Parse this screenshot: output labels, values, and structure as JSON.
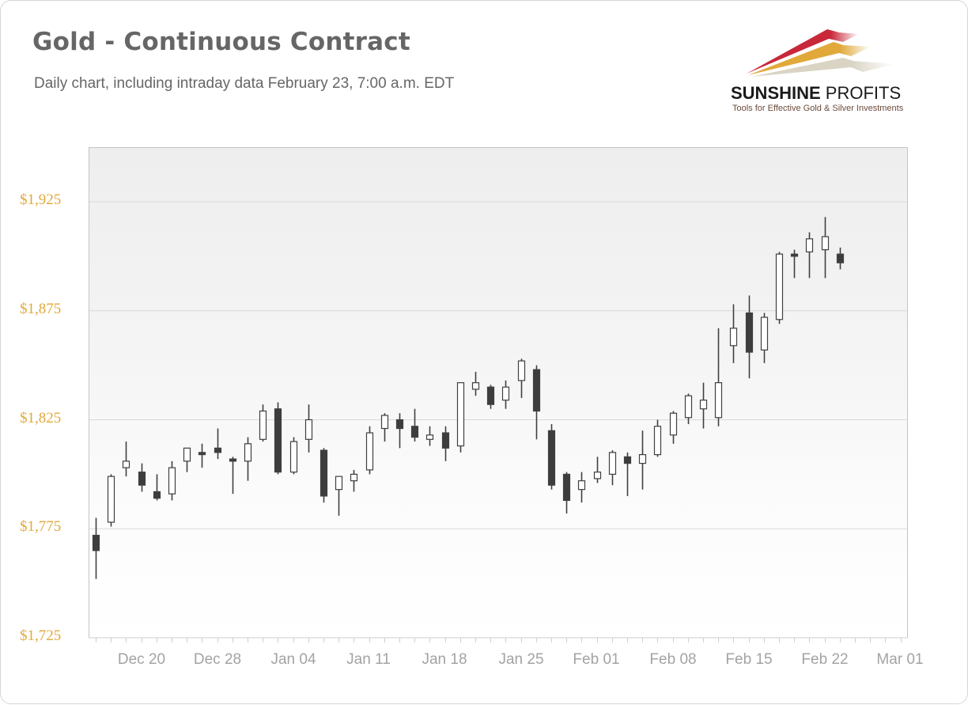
{
  "header": {
    "title": "Gold - Continuous Contract",
    "subtitle": "Daily chart, including intraday data February 23, 7:00 a.m. EDT"
  },
  "logo": {
    "name_bold": "SUNSHINE",
    "name_light": " PROFITS",
    "tagline": "Tools for Effective Gold & Silver Investments",
    "colors": [
      "#c8283a",
      "#e0a93a",
      "#d9d4c4"
    ]
  },
  "colors": {
    "up_fill": "#ffffff",
    "down_fill": "#3d3d3d",
    "outline": "#404040",
    "y_tick_label": "#e0a93a",
    "x_tick_label": "#a3a3a3",
    "grid": "#d9d9d9"
  },
  "chart_data": {
    "type": "candlestick",
    "title": "Gold - Continuous Contract",
    "subtitle": "Daily chart, including intraday data February 23, 7:00 a.m. EDT",
    "xlabel": "",
    "ylabel": "",
    "ylim": [
      1725,
      1950
    ],
    "y_ticks": [
      "$1,725",
      "$1,775",
      "$1,825",
      "$1,875",
      "$1,925"
    ],
    "y_tick_values": [
      1725,
      1775,
      1825,
      1875,
      1925
    ],
    "x_ticks": [
      "Dec 20",
      "Dec 28",
      "Jan 04",
      "Jan 11",
      "Jan 18",
      "Jan 25",
      "Feb 01",
      "Feb 08",
      "Feb 15",
      "Feb 22",
      "Mar 01"
    ],
    "grid": {
      "horizontal": true,
      "vertical": false
    },
    "legend": null,
    "candles": [
      {
        "date": "Dec 15",
        "open": 1772,
        "high": 1780,
        "low": 1752,
        "close": 1765
      },
      {
        "date": "Dec 16",
        "open": 1778,
        "high": 1800,
        "low": 1776,
        "close": 1799
      },
      {
        "date": "Dec 17",
        "open": 1803,
        "high": 1815,
        "low": 1799,
        "close": 1806
      },
      {
        "date": "Dec 20",
        "open": 1801,
        "high": 1805,
        "low": 1792,
        "close": 1795
      },
      {
        "date": "Dec 21",
        "open": 1792,
        "high": 1800,
        "low": 1788,
        "close": 1789
      },
      {
        "date": "Dec 22",
        "open": 1791,
        "high": 1806,
        "low": 1788,
        "close": 1803
      },
      {
        "date": "Dec 23",
        "open": 1806,
        "high": 1811,
        "low": 1801,
        "close": 1812
      },
      {
        "date": "Dec 27",
        "open": 1810,
        "high": 1814,
        "low": 1803,
        "close": 1809
      },
      {
        "date": "Dec 28",
        "open": 1812,
        "high": 1821,
        "low": 1807,
        "close": 1810
      },
      {
        "date": "Dec 29",
        "open": 1807,
        "high": 1808,
        "low": 1791,
        "close": 1806
      },
      {
        "date": "Dec 30",
        "open": 1806,
        "high": 1817,
        "low": 1797,
        "close": 1814
      },
      {
        "date": "Dec 31",
        "open": 1816,
        "high": 1832,
        "low": 1815,
        "close": 1829
      },
      {
        "date": "Jan 03",
        "open": 1830,
        "high": 1833,
        "low": 1800,
        "close": 1801
      },
      {
        "date": "Jan 04",
        "open": 1801,
        "high": 1817,
        "low": 1800,
        "close": 1815
      },
      {
        "date": "Jan 05",
        "open": 1816,
        "high": 1832,
        "low": 1810,
        "close": 1825
      },
      {
        "date": "Jan 06",
        "open": 1811,
        "high": 1812,
        "low": 1787,
        "close": 1790
      },
      {
        "date": "Jan 07",
        "open": 1793,
        "high": 1799,
        "low": 1781,
        "close": 1799
      },
      {
        "date": "Jan 10",
        "open": 1797,
        "high": 1802,
        "low": 1792,
        "close": 1800
      },
      {
        "date": "Jan 11",
        "open": 1802,
        "high": 1822,
        "low": 1800,
        "close": 1819
      },
      {
        "date": "Jan 12",
        "open": 1821,
        "high": 1828,
        "low": 1815,
        "close": 1827
      },
      {
        "date": "Jan 13",
        "open": 1825,
        "high": 1828,
        "low": 1812,
        "close": 1821
      },
      {
        "date": "Jan 14",
        "open": 1822,
        "high": 1830,
        "low": 1815,
        "close": 1817
      },
      {
        "date": "Jan 18",
        "open": 1816,
        "high": 1822,
        "low": 1813,
        "close": 1818
      },
      {
        "date": "Jan 19",
        "open": 1819,
        "high": 1822,
        "low": 1806,
        "close": 1812
      },
      {
        "date": "Jan 20",
        "open": 1813,
        "high": 1842,
        "low": 1810,
        "close": 1842
      },
      {
        "date": "Jan 21",
        "open": 1839,
        "high": 1847,
        "low": 1836,
        "close": 1842
      },
      {
        "date": "Jan 24",
        "open": 1840,
        "high": 1841,
        "low": 1830,
        "close": 1832
      },
      {
        "date": "Jan 25",
        "open": 1834,
        "high": 1843,
        "low": 1830,
        "close": 1840
      },
      {
        "date": "Jan 26",
        "open": 1843,
        "high": 1853,
        "low": 1835,
        "close": 1852
      },
      {
        "date": "Jan 27",
        "open": 1848,
        "high": 1850,
        "low": 1816,
        "close": 1829
      },
      {
        "date": "Jan 28",
        "open": 1820,
        "high": 1823,
        "low": 1793,
        "close": 1795
      },
      {
        "date": "Jan 31",
        "open": 1800,
        "high": 1801,
        "low": 1782,
        "close": 1788
      },
      {
        "date": "Feb 01",
        "open": 1793,
        "high": 1801,
        "low": 1787,
        "close": 1797
      },
      {
        "date": "Feb 02",
        "open": 1798,
        "high": 1808,
        "low": 1796,
        "close": 1801
      },
      {
        "date": "Feb 03",
        "open": 1800,
        "high": 1811,
        "low": 1795,
        "close": 1810
      },
      {
        "date": "Feb 04",
        "open": 1808,
        "high": 1810,
        "low": 1790,
        "close": 1805
      },
      {
        "date": "Feb 07",
        "open": 1805,
        "high": 1820,
        "low": 1793,
        "close": 1809
      },
      {
        "date": "Feb 08",
        "open": 1809,
        "high": 1825,
        "low": 1808,
        "close": 1822
      },
      {
        "date": "Feb 09",
        "open": 1818,
        "high": 1829,
        "low": 1814,
        "close": 1828
      },
      {
        "date": "Feb 10",
        "open": 1826,
        "high": 1837,
        "low": 1823,
        "close": 1836
      },
      {
        "date": "Feb 11",
        "open": 1830,
        "high": 1842,
        "low": 1821,
        "close": 1834
      },
      {
        "date": "Feb 14",
        "open": 1826,
        "high": 1867,
        "low": 1822,
        "close": 1842
      },
      {
        "date": "Feb 15",
        "open": 1859,
        "high": 1878,
        "low": 1851,
        "close": 1867
      },
      {
        "date": "Feb 16",
        "open": 1874,
        "high": 1882,
        "low": 1844,
        "close": 1856
      },
      {
        "date": "Feb 17",
        "open": 1857,
        "high": 1874,
        "low": 1851,
        "close": 1872
      },
      {
        "date": "Feb 18",
        "open": 1871,
        "high": 1902,
        "low": 1869,
        "close": 1901
      },
      {
        "date": "Feb 21",
        "open": 1901,
        "high": 1903,
        "low": 1890,
        "close": 1900
      },
      {
        "date": "Feb 22",
        "open": 1902,
        "high": 1911,
        "low": 1890,
        "close": 1908
      },
      {
        "date": "Feb 23",
        "open": 1903,
        "high": 1918,
        "low": 1890,
        "close": 1909
      },
      {
        "date": "Feb 23 (intraday)",
        "open": 1901,
        "high": 1904,
        "low": 1894,
        "close": 1897
      }
    ]
  }
}
